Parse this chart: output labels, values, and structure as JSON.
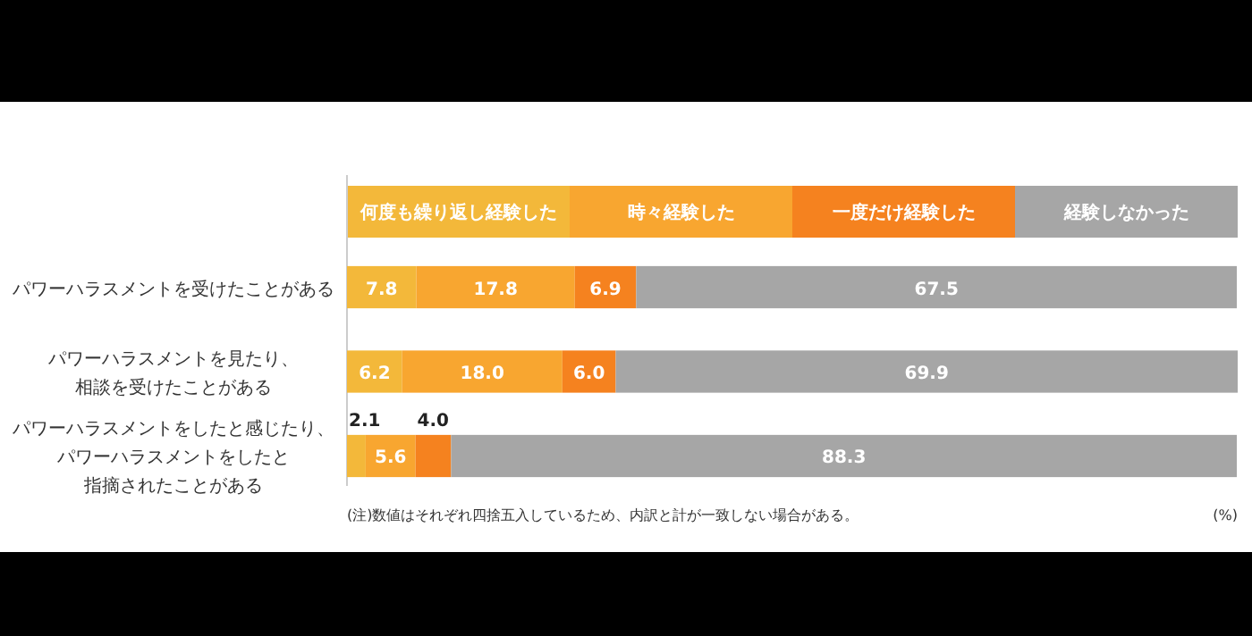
{
  "chart_data": {
    "type": "bar",
    "orientation": "horizontal",
    "stacked": true,
    "legend": "top",
    "categories": [
      "パワーハラスメントを受けたことがある",
      "パワーハラスメントを見たり、相談を受けたことがある",
      "パワーハラスメントをしたと感じたり、パワーハラスメントをしたと指摘されたことがある"
    ],
    "series": [
      {
        "name": "何度も繰り返し経験した",
        "color": "#f3b83a",
        "values": [
          7.8,
          6.2,
          2.1
        ],
        "value_labels": [
          "7.8",
          "6.2",
          "2.1"
        ]
      },
      {
        "name": "時々経験した",
        "color": "#f8a630",
        "values": [
          17.8,
          18.0,
          5.6
        ],
        "value_labels": [
          "17.8",
          "18.0",
          "5.6"
        ]
      },
      {
        "name": "一度だけ経験した",
        "color": "#f5821f",
        "values": [
          6.9,
          6.0,
          4.0
        ],
        "value_labels": [
          "6.9",
          "6.0",
          "4.0"
        ]
      },
      {
        "name": "経験しなかった",
        "color": "#a6a6a6",
        "values": [
          67.5,
          69.9,
          88.3
        ],
        "value_labels": [
          "67.5",
          "69.9",
          "88.3"
        ]
      }
    ],
    "annotations": [
      "(注)数値はそれぞれ四捨五入しているため、内訳と計が一致しない場合がある。",
      "(%)"
    ]
  }
}
